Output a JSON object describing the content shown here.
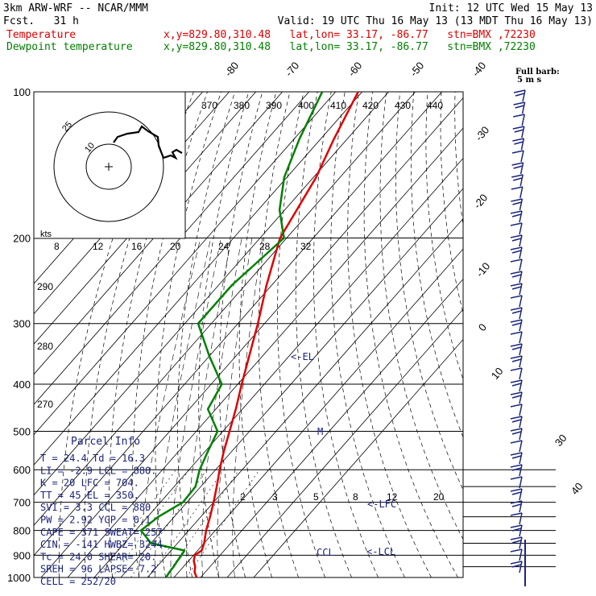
{
  "header": {
    "model": "3km ARW-WRF -- NCAR/MMM",
    "init": "Init: 12 UTC Wed 15 May 13",
    "fcst": "Fcst.   31 h",
    "valid": "Valid: 19 UTC Thu 16 May 13 (13 MDT Thu 16 May 13)",
    "temp_label": "Temperature",
    "temp_loc": "x,y=829.80,310.48   lat,lon= 33.17, -86.77   stn=BMX ,72230",
    "dew_label": "Dewpoint temperature",
    "dew_loc": "x,y=829.80,310.48   lat,lon= 33.17, -86.77   stn=BMX ,72230"
  },
  "colors": {
    "temperature": "#e00000",
    "dewpoint": "#008000",
    "barbs": "#1a237e",
    "text": "#1a237e"
  },
  "barb_note": {
    "line1": "Full barb:",
    "line2": "5 m s"
  },
  "hodo": {
    "units": "kts",
    "ring_labels": [
      "10",
      "25"
    ]
  },
  "parcel_info": {
    "title": "Parcel Info",
    "rows": [
      "T  =   24.4 Td =  16.3",
      "LI =   -2.9 LCL =  880.",
      "K  =     20 LFC =  704.",
      "TT =     45 EL  =  350.",
      "SVI =   3.3 CCL =  880.",
      "PW =   2.92 YGP =   0.1",
      "CAPE =  371 SWEAT=  257",
      "CIN =  -141 HWBZ= 3244.",
      "Tc =   24.0 SHEAR=  20.",
      "SREH =   96 LAPSE=  7.2",
      "CELL = 252/20"
    ]
  },
  "levels": {
    "el": "<-EL",
    "lfc": "<-LFC",
    "lcl": "<-LCL",
    "ccl": "CCL",
    "m": "M"
  },
  "chart_data": {
    "type": "line",
    "subtype": "skew-T log-p",
    "y_axis": {
      "label": "pressure (hPa)",
      "scale": "log",
      "range": [
        1000,
        100
      ],
      "ticks": [
        100,
        200,
        300,
        400,
        500,
        600,
        700,
        800,
        900,
        1000
      ]
    },
    "isotherm_labels": [
      "-80",
      "-70",
      "-60",
      "-50",
      "-40",
      "-30",
      "-20",
      "-10",
      "0",
      "10",
      "30",
      "40"
    ],
    "theta_e_labels": [
      "370",
      "380",
      "390",
      "400",
      "410",
      "420",
      "430",
      "440"
    ],
    "mixing_ratio_labels": [
      "2",
      "3",
      "5",
      "8",
      "12",
      "20"
    ],
    "hodograph_ticks": [
      "8",
      "12",
      "16",
      "20",
      "24",
      "28",
      "32"
    ],
    "dry_adiabat_labels": [
      "290",
      "280",
      "270"
    ],
    "series": [
      {
        "name": "Temperature",
        "color": "#e00000",
        "points": [
          [
            1000,
            28.5
          ],
          [
            975,
            26.0
          ],
          [
            950,
            24.4
          ],
          [
            925,
            22.0
          ],
          [
            900,
            20.5
          ],
          [
            880,
            21.5
          ],
          [
            850,
            20.0
          ],
          [
            800,
            16.5
          ],
          [
            750,
            13.5
          ],
          [
            700,
            10.0
          ],
          [
            650,
            6.0
          ],
          [
            600,
            1.5
          ],
          [
            550,
            -3.0
          ],
          [
            500,
            -7.5
          ],
          [
            450,
            -12.5
          ],
          [
            400,
            -18.5
          ],
          [
            350,
            -25.0
          ],
          [
            300,
            -32.5
          ],
          [
            250,
            -42.0
          ],
          [
            200,
            -52.5
          ],
          [
            175,
            -55.5
          ],
          [
            150,
            -59.0
          ],
          [
            125,
            -65.0
          ],
          [
            100,
            -71.5
          ]
        ]
      },
      {
        "name": "Dewpoint temperature",
        "color": "#008000",
        "points": [
          [
            1000,
            17.0
          ],
          [
            975,
            16.5
          ],
          [
            950,
            16.3
          ],
          [
            925,
            15.8
          ],
          [
            900,
            15.5
          ],
          [
            880,
            15.0
          ],
          [
            850,
            0.0
          ],
          [
            800,
            -8.0
          ],
          [
            750,
            -6.0
          ],
          [
            700,
            -1.5
          ],
          [
            650,
            -2.0
          ],
          [
            600,
            -6.0
          ],
          [
            550,
            -9.0
          ],
          [
            500,
            -12.0
          ],
          [
            450,
            -23.0
          ],
          [
            400,
            -26.0
          ],
          [
            350,
            -40.0
          ],
          [
            300,
            -55.0
          ],
          [
            250,
            -55.0
          ],
          [
            200,
            -51.0
          ],
          [
            175,
            -62.0
          ],
          [
            150,
            -71.0
          ],
          [
            125,
            -78.0
          ],
          [
            100,
            -85.0
          ]
        ]
      }
    ]
  }
}
